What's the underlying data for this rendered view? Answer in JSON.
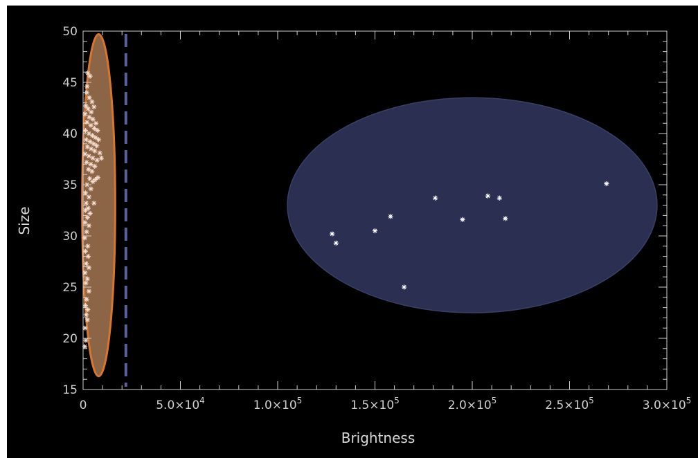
{
  "chart_data": {
    "type": "scatter",
    "title": "",
    "xlabel": "Brightness",
    "ylabel": "Size",
    "xlim": [
      0,
      300000
    ],
    "ylim": [
      15,
      50
    ],
    "x_ticks": [
      {
        "value": 0,
        "mant": "0",
        "exp": ""
      },
      {
        "value": 50000,
        "mant": "5.0×10",
        "exp": "4"
      },
      {
        "value": 100000,
        "mant": "1.0×10",
        "exp": "5"
      },
      {
        "value": 150000,
        "mant": "1.5×10",
        "exp": "5"
      },
      {
        "value": 200000,
        "mant": "2.0×10",
        "exp": "5"
      },
      {
        "value": 250000,
        "mant": "2.5×10",
        "exp": "5"
      },
      {
        "value": 300000,
        "mant": "3.0×10",
        "exp": "5"
      }
    ],
    "y_ticks": [
      15,
      20,
      25,
      30,
      35,
      40,
      45,
      50
    ],
    "colors": {
      "background": "#000000",
      "axes": "#d0d0d0",
      "marker": "#ffffff",
      "dim_cluster_fill": "#8c6446",
      "dim_cluster_edge": "#d8762e",
      "bright_cluster_fill": "#2b2f52",
      "bright_cluster_edge": "#3a3f66",
      "threshold_line": "#5a609a"
    },
    "threshold_x": 22000,
    "clusters": [
      {
        "id": "dim",
        "center": [
          8000,
          33
        ],
        "radii": [
          8500,
          16.7
        ]
      },
      {
        "id": "bright",
        "center": [
          200000,
          33
        ],
        "radii": [
          95000,
          10.5
        ]
      }
    ],
    "series": [
      {
        "points": [
          [
            128000,
            30.2
          ],
          [
            130000,
            29.3
          ],
          [
            150000,
            30.5
          ],
          [
            158000,
            31.9
          ],
          [
            165000,
            25.0
          ],
          [
            181000,
            33.7
          ],
          [
            195000,
            31.6
          ],
          [
            208000,
            33.9
          ],
          [
            214000,
            33.7
          ],
          [
            217000,
            31.7
          ],
          [
            269000,
            35.1
          ]
        ]
      },
      {
        "points": [
          [
            2400,
            45.9
          ],
          [
            3600,
            45.6
          ],
          [
            2000,
            44.6
          ],
          [
            1800,
            44.0
          ],
          [
            3200,
            43.5
          ],
          [
            4600,
            43.1
          ],
          [
            1400,
            42.7
          ],
          [
            2600,
            42.4
          ],
          [
            4200,
            42.1
          ],
          [
            5600,
            42.6
          ],
          [
            1000,
            41.9
          ],
          [
            3200,
            41.6
          ],
          [
            5000,
            41.4
          ],
          [
            6600,
            41.0
          ],
          [
            2000,
            41.1
          ],
          [
            4000,
            40.8
          ],
          [
            5800,
            40.5
          ],
          [
            7400,
            40.3
          ],
          [
            1200,
            40.3
          ],
          [
            3000,
            40.0
          ],
          [
            4800,
            39.8
          ],
          [
            6400,
            39.6
          ],
          [
            8000,
            39.4
          ],
          [
            1600,
            39.4
          ],
          [
            3600,
            39.2
          ],
          [
            5400,
            39.0
          ],
          [
            7000,
            38.8
          ],
          [
            2200,
            38.7
          ],
          [
            4200,
            38.5
          ],
          [
            6000,
            38.3
          ],
          [
            8600,
            38.1
          ],
          [
            1000,
            38.0
          ],
          [
            3000,
            37.8
          ],
          [
            5000,
            37.6
          ],
          [
            7200,
            37.4
          ],
          [
            9400,
            37.6
          ],
          [
            1800,
            37.2
          ],
          [
            4000,
            37.0
          ],
          [
            6000,
            36.8
          ],
          [
            2800,
            36.5
          ],
          [
            4600,
            36.3
          ],
          [
            7600,
            35.7
          ],
          [
            3400,
            35.6
          ],
          [
            5000,
            35.3
          ],
          [
            6200,
            35.5
          ],
          [
            2000,
            35.0
          ],
          [
            4000,
            34.6
          ],
          [
            1200,
            34.2
          ],
          [
            3000,
            33.8
          ],
          [
            1600,
            33.2
          ],
          [
            5600,
            33.2
          ],
          [
            2600,
            32.7
          ],
          [
            1200,
            32.5
          ],
          [
            3600,
            32.2
          ],
          [
            2200,
            31.8
          ],
          [
            1000,
            31.3
          ],
          [
            3000,
            31.0
          ],
          [
            1800,
            30.4
          ],
          [
            800,
            29.8
          ],
          [
            2400,
            29.0
          ],
          [
            1200,
            28.5
          ],
          [
            2600,
            28.0
          ],
          [
            1600,
            27.3
          ],
          [
            3000,
            26.9
          ],
          [
            1000,
            26.4
          ],
          [
            2200,
            25.8
          ],
          [
            1400,
            25.4
          ],
          [
            3000,
            24.6
          ],
          [
            1800,
            23.8
          ],
          [
            1200,
            23.2
          ],
          [
            2400,
            22.8
          ],
          [
            1600,
            22.3
          ],
          [
            2200,
            21.8
          ],
          [
            1000,
            21.0
          ],
          [
            1400,
            19.8
          ],
          [
            900,
            19.2
          ]
        ]
      }
    ]
  }
}
